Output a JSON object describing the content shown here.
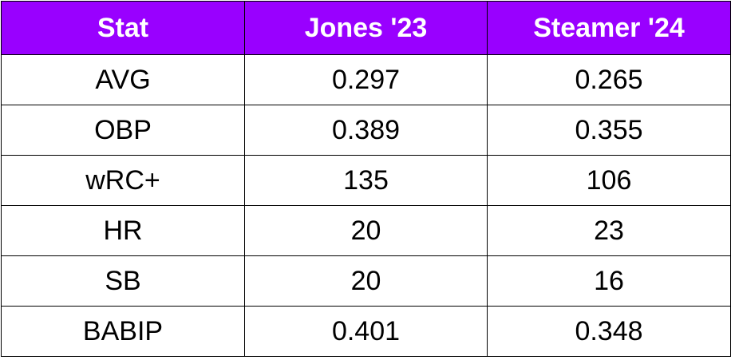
{
  "table": {
    "header": [
      "Stat",
      "Jones '23",
      "Steamer '24"
    ],
    "rows": [
      [
        "AVG",
        "0.297",
        "0.265"
      ],
      [
        "OBP",
        "0.389",
        "0.355"
      ],
      [
        "wRC+",
        "135",
        "106"
      ],
      [
        "HR",
        "20",
        "23"
      ],
      [
        "SB",
        "20",
        "16"
      ],
      [
        "BABIP",
        "0.401",
        "0.348"
      ]
    ]
  }
}
